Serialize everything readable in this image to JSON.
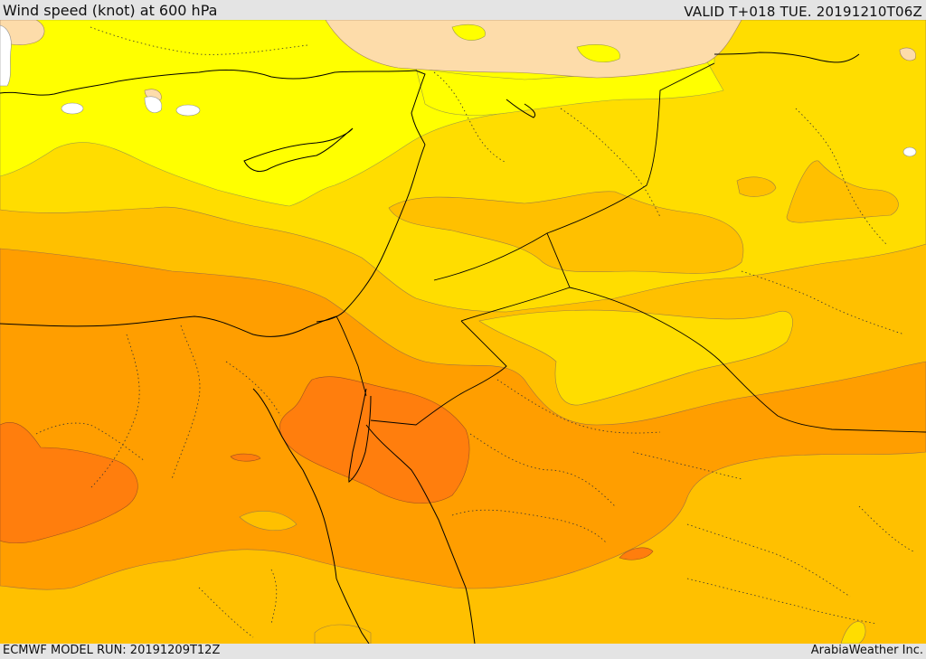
{
  "header": {
    "title": "Wind speed (knot) at 600 hPa",
    "valid_time": "VALID T+018 TUE. 20191210T06Z"
  },
  "footer": {
    "model_run": "ECMWF MODEL RUN: 20191209T12Z",
    "credit": "ArabiaWeather Inc."
  },
  "legend_colors": {
    "white": "#ffffff",
    "peach": "#fddcaa",
    "yellow": "#ffff00",
    "gold": "#ffdd00",
    "amber": "#ffc000",
    "orange": "#ff9e00",
    "dark_orange": "#ff7e0d"
  }
}
